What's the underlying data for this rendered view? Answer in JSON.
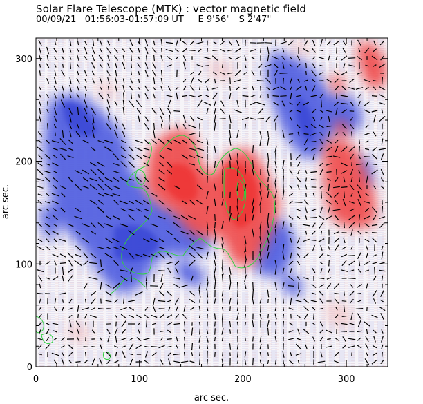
{
  "title": "Solar Flare Telescope (MTK) : vector magnetic field",
  "subtitle": "00/09/21   01:56:03-01:57:09 UT     E 9'56\"   S 2'47\"",
  "axes": {
    "xlabel": "arc sec.",
    "ylabel": "arc sec.",
    "x_ticks": [
      0,
      100,
      200,
      300
    ],
    "y_ticks": [
      0,
      100,
      200,
      300
    ],
    "xlim": [
      0,
      340
    ],
    "ylim": [
      0,
      320
    ]
  },
  "colors": {
    "positive_polarity": "#f04848",
    "negative_polarity": "#4a58e0",
    "neutral_line": "#30d040",
    "vector": "#000000"
  }
}
